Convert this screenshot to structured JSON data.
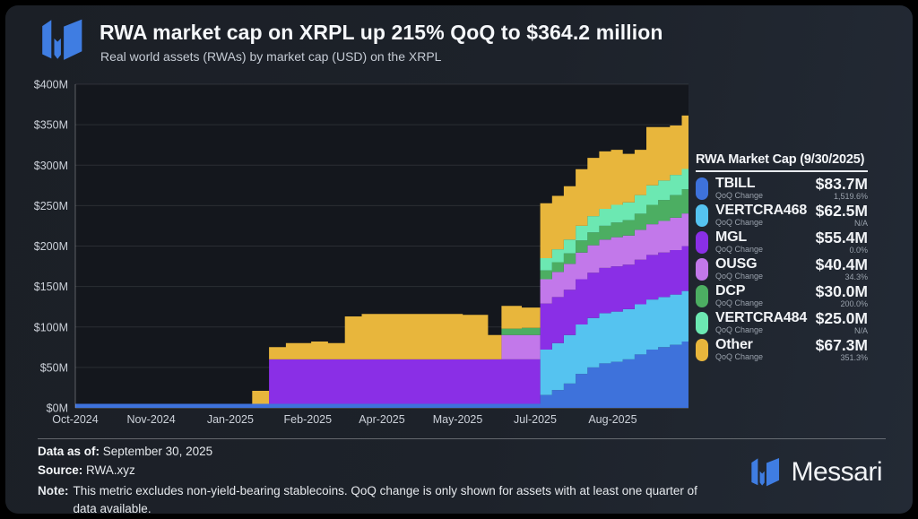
{
  "header": {
    "title": "RWA market cap on XRPL up 215% QoQ to $364.2 million",
    "subtitle": "Real world assets (RWAs) by market cap (USD) on the XRPL",
    "brand_color": "#3f7de2"
  },
  "legend": {
    "title": "RWA Market Cap (9/30/2025)",
    "qoq_label": "QoQ Change",
    "rows": [
      {
        "name": "TBILL",
        "value": "$83.7M",
        "qoq": "1,519.6%",
        "color": "#3e72db"
      },
      {
        "name": "VERTCRA468",
        "value": "$62.5M",
        "qoq": "N/A",
        "color": "#55c3f0"
      },
      {
        "name": "MGL",
        "value": "$55.4M",
        "qoq": "0.0%",
        "color": "#8a2fe6"
      },
      {
        "name": "OUSG",
        "value": "$40.4M",
        "qoq": "34.3%",
        "color": "#c278ea"
      },
      {
        "name": "DCP",
        "value": "$30.0M",
        "qoq": "200.0%",
        "color": "#4cae62"
      },
      {
        "name": "VERTCRA484",
        "value": "$25.0M",
        "qoq": "N/A",
        "color": "#6ce8b2"
      },
      {
        "name": "Other",
        "value": "$67.3M",
        "qoq": "351.3%",
        "color": "#e8b63c"
      }
    ]
  },
  "footer": {
    "data_as_of_label": "Data as of:",
    "data_as_of": "September 30, 2025",
    "source_label": "Source:",
    "source": "RWA.xyz",
    "note_label": "Note:",
    "note": "This metric excludes non-yield-bearing stablecoins. QoQ change is only shown for assets with at least one quarter of data available.",
    "brand": "Messari"
  },
  "chart_data": {
    "type": "area",
    "stacked": true,
    "title": "RWA market cap on XRPL up 215% QoQ to $364.2 million",
    "subtitle": "Real world assets (RWAs) by market cap (USD) on the XRPL",
    "x_unit": "days since 2024-10-01 (range Oct-2024 to Sep-30-2025)",
    "y_unit": "USD millions",
    "ylim": [
      0,
      400
    ],
    "grid": "horizontal",
    "legend_position": "right",
    "total_final": 364.2,
    "x_days": [
      0,
      98,
      105,
      115,
      125,
      140,
      150,
      160,
      170,
      200,
      230,
      245,
      253,
      265,
      276,
      283,
      290,
      297,
      304,
      311,
      318,
      325,
      332,
      339,
      346,
      353,
      360,
      364
    ],
    "series": [
      {
        "name": "TBILL",
        "color": "#3e72db",
        "values": [
          5,
          5,
          5,
          5,
          5,
          5,
          5,
          5,
          5,
          5,
          5,
          5,
          5,
          5,
          16,
          22,
          30,
          42,
          50,
          55,
          57,
          60,
          66,
          72,
          75,
          78,
          82,
          83.7
        ]
      },
      {
        "name": "VERTCRA468",
        "color": "#55c3f0",
        "values": [
          0,
          0,
          0,
          0,
          0,
          0,
          0,
          0,
          0,
          0,
          0,
          0,
          0,
          0,
          56,
          58,
          60,
          61,
          61,
          62,
          62,
          62,
          62,
          62,
          62,
          62,
          62.5,
          62.5
        ]
      },
      {
        "name": "MGL",
        "color": "#8a2fe6",
        "values": [
          0,
          0,
          0,
          55,
          55,
          55,
          55,
          55,
          55,
          55,
          55,
          55,
          55,
          55,
          57,
          57,
          56,
          56,
          56,
          56,
          56,
          55,
          55,
          55,
          55,
          55,
          55.4,
          55.4
        ]
      },
      {
        "name": "OUSG",
        "color": "#c278ea",
        "values": [
          0,
          0,
          0,
          0,
          0,
          0,
          0,
          0,
          0,
          0,
          0,
          0,
          30,
          30,
          30,
          31,
          32,
          33,
          34,
          35,
          36,
          36,
          37,
          38,
          39,
          40,
          40.4,
          40.4
        ]
      },
      {
        "name": "DCP",
        "color": "#4cae62",
        "values": [
          0,
          0,
          0,
          0,
          0,
          0,
          0,
          0,
          0,
          0,
          0,
          0,
          8,
          9,
          11,
          12,
          13,
          15,
          16,
          17,
          18,
          19,
          20,
          24,
          26,
          28,
          30,
          30
        ]
      },
      {
        "name": "VERTCRA484",
        "color": "#6ce8b2",
        "values": [
          0,
          0,
          0,
          0,
          0,
          0,
          0,
          0,
          0,
          0,
          0,
          0,
          0,
          0,
          15,
          16,
          17,
          18,
          20,
          21,
          22,
          22,
          23,
          24,
          24,
          25,
          25,
          25
        ]
      },
      {
        "name": "Other",
        "color": "#e8b63c",
        "values": [
          0,
          0,
          16,
          15,
          20,
          22,
          20,
          53,
          56,
          56,
          55,
          30,
          28,
          25,
          68,
          66,
          66,
          70,
          72,
          71,
          68,
          60,
          56,
          72,
          66,
          61,
          66,
          67.3
        ]
      }
    ],
    "xticks": [
      {
        "label": "Oct-2024",
        "day": 0
      },
      {
        "label": "Nov-2024",
        "day": 45
      },
      {
        "label": "Jan-2025",
        "day": 92
      },
      {
        "label": "Feb-2025",
        "day": 138
      },
      {
        "label": "Apr-2025",
        "day": 182
      },
      {
        "label": "May-2025",
        "day": 227
      },
      {
        "label": "Jul-2025",
        "day": 273
      },
      {
        "label": "Aug-2025",
        "day": 319
      }
    ],
    "yticks": [
      "$0M",
      "$50M",
      "$100M",
      "$150M",
      "$200M",
      "$250M",
      "$300M",
      "$350M",
      "$400M"
    ]
  }
}
